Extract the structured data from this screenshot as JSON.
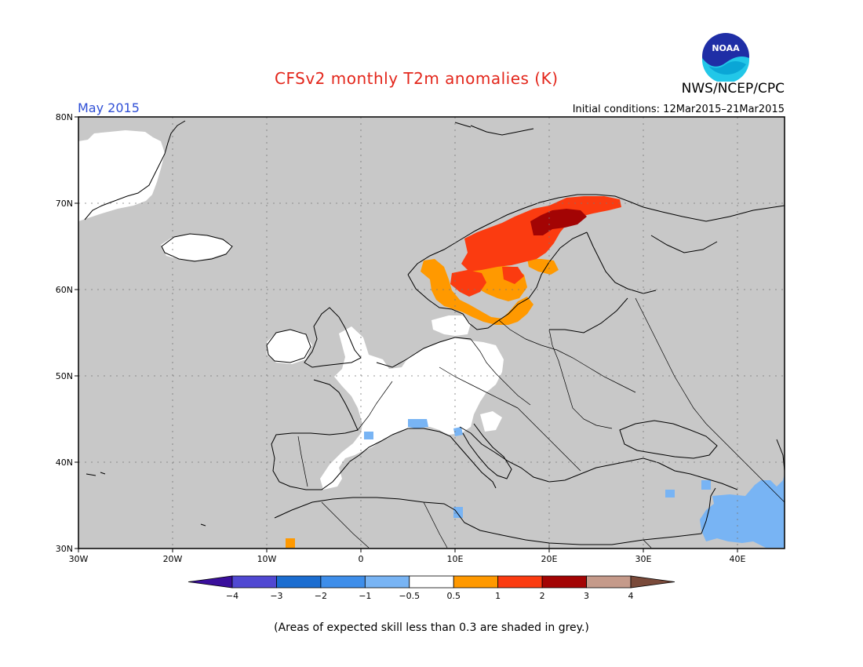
{
  "header": {
    "title": "CFSv2 monthly T2m anomalies (K)",
    "month": "May 2015",
    "initial_conditions": "Initial conditions: 12Mar2015–21Mar2015",
    "organization": "NWS/NCEP/CPC",
    "logo_text": "NOAA"
  },
  "axes": {
    "lat_labels": [
      "80N",
      "70N",
      "60N",
      "50N",
      "40N",
      "30N"
    ],
    "lon_labels": [
      "30W",
      "20W",
      "10W",
      "0",
      "10E",
      "20E",
      "30E",
      "40E"
    ]
  },
  "legend": {
    "labels": [
      "−4",
      "−3",
      "−2",
      "−1",
      "−0.5",
      "0.5",
      "1",
      "2",
      "3",
      "4"
    ],
    "colors": [
      "#3a0f9c",
      "#5048d2",
      "#1b6dd0",
      "#3e8eea",
      "#78b4f4",
      "#ffffff",
      "#ff9900",
      "#fb3b10",
      "#a30404",
      "#c59a8a",
      "#7a4a3a"
    ]
  },
  "colors": {
    "land_grey": "#c8c8c8",
    "title_red": "#e3261b",
    "month_blue": "#2f4fd6"
  },
  "footer": {
    "note": "(Areas of expected skill less than 0.3 are shaded in grey.)"
  }
}
